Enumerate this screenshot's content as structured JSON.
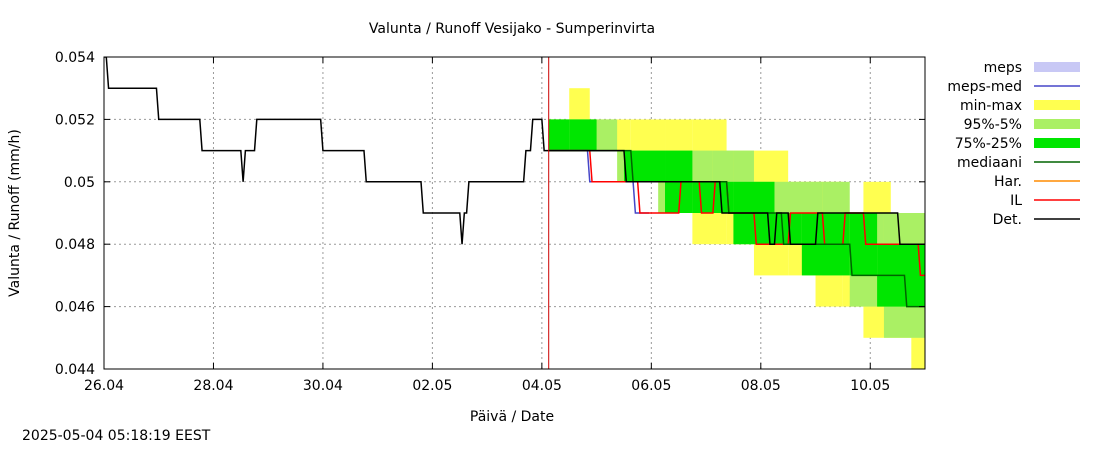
{
  "chart_data": {
    "type": "area",
    "title": "Valunta / Runoff  Vesijako - Sumperinvirta",
    "xlabel": "Päivä / Date",
    "ylabel": "Valunta / Runoff (mm/h)",
    "x_range": [
      "2025-04-26",
      "2025-05-11"
    ],
    "ylim": [
      0.044,
      0.054
    ],
    "x_tick_labels": [
      "26.04",
      "28.04",
      "30.04",
      "02.05",
      "04.05",
      "06.05",
      "08.05",
      "10.05"
    ],
    "x_tick_values": [
      "2025-04-26",
      "2025-04-28",
      "2025-04-30",
      "2025-05-02",
      "2025-05-04",
      "2025-05-06",
      "2025-05-08",
      "2025-05-10"
    ],
    "y_tick_labels": [
      "0.044",
      "0.046",
      "0.048",
      "0.05",
      "0.052",
      "0.054"
    ],
    "y_tick_values": [
      0.044,
      0.046,
      0.048,
      0.05,
      0.052,
      0.054
    ],
    "grid": true,
    "forecast_start": "2025-05-04 03:00",
    "colors": {
      "meps": "#c8c8f5",
      "meps_med": "#4646c8",
      "min_max": "#ffff50",
      "p95_5": "#aaf064",
      "p75_25": "#00e600",
      "mediaani": "#006400",
      "har": "#ff8c00",
      "il": "#ff0000",
      "det": "#000000",
      "forecast_line": "#cc0000"
    },
    "legend_position": "right",
    "legend": [
      {
        "key": "meps",
        "label": "meps",
        "style": "box"
      },
      {
        "key": "meps_med",
        "label": "meps-med",
        "style": "line"
      },
      {
        "key": "min_max",
        "label": "min-max",
        "style": "box"
      },
      {
        "key": "p95_5",
        "label": "95%-5%",
        "style": "box"
      },
      {
        "key": "p75_25",
        "label": "75%-25%",
        "style": "box"
      },
      {
        "key": "mediaani",
        "label": "mediaani",
        "style": "line"
      },
      {
        "key": "har",
        "label": "Har.",
        "style": "line"
      },
      {
        "key": "il",
        "label": "IL",
        "style": "line"
      },
      {
        "key": "det",
        "label": "Det.",
        "style": "line"
      }
    ],
    "observed": {
      "name": "Det.",
      "points": [
        [
          "2025-04-26 00:00",
          0.054
        ],
        [
          "2025-04-26 01:00",
          0.054
        ],
        [
          "2025-04-26 02:00",
          0.053
        ],
        [
          "2025-04-26 23:00",
          0.053
        ],
        [
          "2025-04-27 00:00",
          0.052
        ],
        [
          "2025-04-27 18:00",
          0.052
        ],
        [
          "2025-04-27 19:00",
          0.051
        ],
        [
          "2025-04-28 12:00",
          0.051
        ],
        [
          "2025-04-28 13:00",
          0.05
        ],
        [
          "2025-04-28 14:00",
          0.051
        ],
        [
          "2025-04-28 18:00",
          0.051
        ],
        [
          "2025-04-28 19:00",
          0.052
        ],
        [
          "2025-04-29 23:00",
          0.052
        ],
        [
          "2025-04-30 00:00",
          0.051
        ],
        [
          "2025-04-30 18:00",
          0.051
        ],
        [
          "2025-04-30 19:00",
          0.05
        ],
        [
          "2025-05-01 19:00",
          0.05
        ],
        [
          "2025-05-01 20:00",
          0.049
        ],
        [
          "2025-05-02 12:00",
          0.049
        ],
        [
          "2025-05-02 13:00",
          0.048
        ],
        [
          "2025-05-02 14:00",
          0.049
        ],
        [
          "2025-05-02 15:00",
          0.049
        ],
        [
          "2025-05-02 16:00",
          0.05
        ],
        [
          "2025-05-03 16:00",
          0.05
        ],
        [
          "2025-05-03 17:00",
          0.051
        ],
        [
          "2025-05-03 19:00",
          0.051
        ],
        [
          "2025-05-03 20:00",
          0.052
        ],
        [
          "2025-05-04 00:00",
          0.052
        ],
        [
          "2025-05-04 01:00",
          0.051
        ],
        [
          "2025-05-04 03:00",
          0.051
        ]
      ]
    },
    "bands": {
      "min_max": [
        [
          "2025-05-04 03:00",
          0.051,
          0.052
        ],
        [
          "2025-05-04 12:00",
          0.051,
          0.053
        ],
        [
          "2025-05-04 21:00",
          0.051,
          0.052
        ],
        [
          "2025-05-05 15:00",
          0.05,
          0.052
        ],
        [
          "2025-05-06 06:00",
          0.049,
          0.052
        ],
        [
          "2025-05-06 18:00",
          0.048,
          0.052
        ],
        [
          "2025-05-07 09:00",
          0.048,
          0.051
        ],
        [
          "2025-05-07 21:00",
          0.047,
          0.051
        ],
        [
          "2025-05-08 12:00",
          0.047,
          0.05
        ],
        [
          "2025-05-09 00:00",
          0.046,
          0.05
        ],
        [
          "2025-05-09 12:00",
          0.046,
          0.049
        ],
        [
          "2025-05-09 21:00",
          0.045,
          0.05
        ],
        [
          "2025-05-10 09:00",
          0.045,
          0.049
        ],
        [
          "2025-05-10 18:00",
          0.044,
          0.049
        ],
        [
          "2025-05-11 00:00",
          0.044,
          0.049
        ]
      ],
      "p95_5": [
        [
          "2025-05-04 03:00",
          0.051,
          0.052
        ],
        [
          "2025-05-04 21:00",
          0.051,
          0.052
        ],
        [
          "2025-05-05 09:00",
          0.05,
          0.051
        ],
        [
          "2025-05-06 03:00",
          0.049,
          0.051
        ],
        [
          "2025-05-07 03:00",
          0.049,
          0.051
        ],
        [
          "2025-05-07 12:00",
          0.048,
          0.051
        ],
        [
          "2025-05-07 21:00",
          0.048,
          0.05
        ],
        [
          "2025-05-08 06:00",
          0.048,
          0.05
        ],
        [
          "2025-05-09 03:00",
          0.047,
          0.05
        ],
        [
          "2025-05-09 15:00",
          0.046,
          0.049
        ],
        [
          "2025-05-10 06:00",
          0.045,
          0.049
        ],
        [
          "2025-05-11 00:00",
          0.045,
          0.049
        ]
      ],
      "p75_25": [
        [
          "2025-05-04 03:00",
          0.051,
          0.052
        ],
        [
          "2025-05-04 12:00",
          0.051,
          0.052
        ],
        [
          "2025-05-05 00:00",
          0.051,
          0.051
        ],
        [
          "2025-05-05 12:00",
          0.05,
          0.051
        ],
        [
          "2025-05-06 06:00",
          0.049,
          0.051
        ],
        [
          "2025-05-06 18:00",
          0.049,
          0.05
        ],
        [
          "2025-05-07 12:00",
          0.048,
          0.05
        ],
        [
          "2025-05-08 06:00",
          0.048,
          0.049
        ],
        [
          "2025-05-08 18:00",
          0.047,
          0.049
        ],
        [
          "2025-05-09 15:00",
          0.047,
          0.049
        ],
        [
          "2025-05-10 03:00",
          0.046,
          0.048
        ],
        [
          "2025-05-11 00:00",
          0.046,
          0.047
        ]
      ]
    },
    "forecast_lines": {
      "mediaani": [
        [
          "2025-05-04 03:00",
          0.051
        ],
        [
          "2025-05-05 15:00",
          0.051
        ],
        [
          "2025-05-05 16:00",
          0.05
        ],
        [
          "2025-05-07 09:00",
          0.05
        ],
        [
          "2025-05-07 10:00",
          0.049
        ],
        [
          "2025-05-08 09:00",
          0.049
        ],
        [
          "2025-05-08 10:00",
          0.048
        ],
        [
          "2025-05-09 15:00",
          0.048
        ],
        [
          "2025-05-09 16:00",
          0.047
        ],
        [
          "2025-05-10 15:00",
          0.047
        ],
        [
          "2025-05-10 16:00",
          0.046
        ],
        [
          "2025-05-11 00:00",
          0.046
        ]
      ],
      "det": [
        [
          "2025-05-04 03:00",
          0.051
        ],
        [
          "2025-05-05 12:00",
          0.051
        ],
        [
          "2025-05-05 13:00",
          0.05
        ],
        [
          "2025-05-07 06:00",
          0.05
        ],
        [
          "2025-05-07 07:00",
          0.049
        ],
        [
          "2025-05-08 03:00",
          0.049
        ],
        [
          "2025-05-08 04:00",
          0.048
        ],
        [
          "2025-05-08 06:00",
          0.048
        ],
        [
          "2025-05-08 07:00",
          0.049
        ],
        [
          "2025-05-08 12:00",
          0.049
        ],
        [
          "2025-05-08 13:00",
          0.048
        ],
        [
          "2025-05-09 00:00",
          0.048
        ],
        [
          "2025-05-09 01:00",
          0.049
        ],
        [
          "2025-05-10 12:00",
          0.049
        ],
        [
          "2025-05-10 13:00",
          0.048
        ],
        [
          "2025-05-11 00:00",
          0.048
        ]
      ],
      "il": [
        [
          "2025-05-04 03:00",
          0.051
        ],
        [
          "2025-05-04 21:00",
          0.051
        ],
        [
          "2025-05-04 22:00",
          0.05
        ],
        [
          "2025-05-05 18:00",
          0.05
        ],
        [
          "2025-05-05 19:00",
          0.049
        ],
        [
          "2025-05-06 12:00",
          0.049
        ],
        [
          "2025-05-06 13:00",
          0.05
        ],
        [
          "2025-05-06 21:00",
          0.05
        ],
        [
          "2025-05-06 22:00",
          0.049
        ],
        [
          "2025-05-07 03:00",
          0.049
        ],
        [
          "2025-05-07 04:00",
          0.05
        ],
        [
          "2025-05-07 09:00",
          0.05
        ],
        [
          "2025-05-07 10:00",
          0.049
        ],
        [
          "2025-05-07 21:00",
          0.049
        ],
        [
          "2025-05-07 22:00",
          0.048
        ],
        [
          "2025-05-08 12:00",
          0.048
        ],
        [
          "2025-05-08 13:00",
          0.049
        ],
        [
          "2025-05-09 03:00",
          0.049
        ],
        [
          "2025-05-09 04:00",
          0.048
        ],
        [
          "2025-05-09 12:00",
          0.048
        ],
        [
          "2025-05-09 13:00",
          0.049
        ],
        [
          "2025-05-09 21:00",
          0.049
        ],
        [
          "2025-05-09 22:00",
          0.048
        ],
        [
          "2025-05-10 21:00",
          0.048
        ],
        [
          "2025-05-10 22:00",
          0.047
        ],
        [
          "2025-05-11 00:00",
          0.047
        ]
      ],
      "meps_med": [
        [
          "2025-05-04 03:00",
          0.051
        ],
        [
          "2025-05-04 20:00",
          0.051
        ],
        [
          "2025-05-04 21:00",
          0.05
        ],
        [
          "2025-05-05 16:00",
          0.05
        ],
        [
          "2025-05-05 17:00",
          0.049
        ],
        [
          "2025-05-05 23:00",
          0.049
        ]
      ]
    }
  },
  "footer": {
    "timestamp": "2025-05-04 05:18:19 EEST"
  }
}
